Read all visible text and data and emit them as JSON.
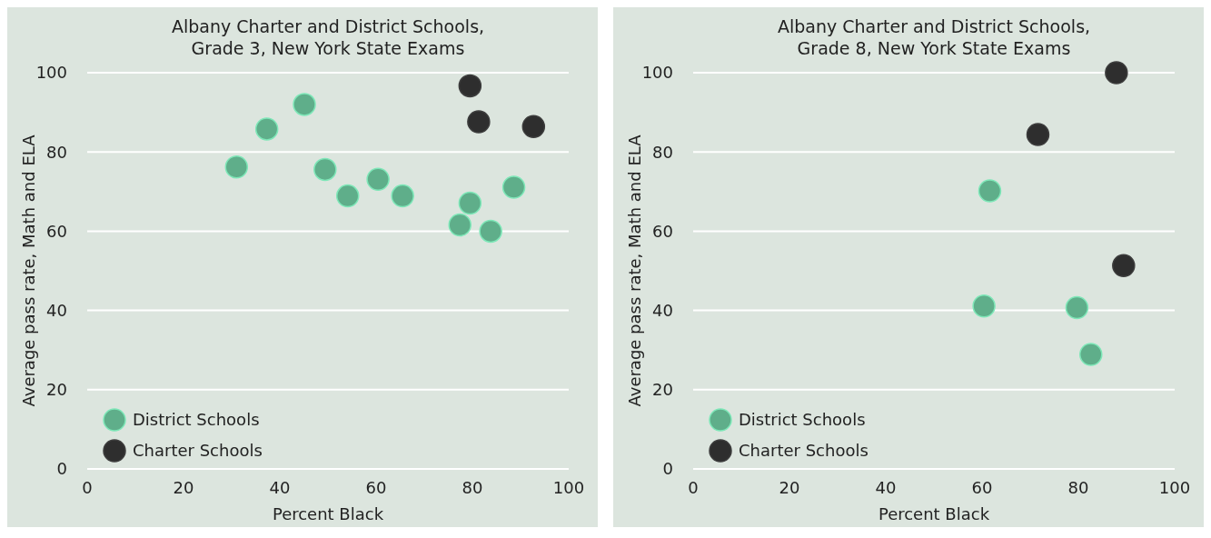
{
  "chart_data": [
    {
      "type": "scatter",
      "title": "Albany Charter and District Schools,\nGrade 3, New York State Exams",
      "xlabel": "Percent Black",
      "ylabel": "Average pass rate, Math and ELA",
      "xlim": [
        0,
        100
      ],
      "xticks": [
        0,
        20,
        40,
        60,
        80,
        100
      ],
      "ylim": [
        0,
        100
      ],
      "yticks": [
        0,
        20,
        40,
        60,
        80,
        100
      ],
      "grid": "y",
      "legend": "bottom left",
      "marker": "circle",
      "series": [
        {
          "name": "District Schools",
          "color": "#5fae8a",
          "x": [
            31,
            37.3,
            45.1,
            49.4,
            54.1,
            60.4,
            65.5,
            77.4,
            79.5,
            83.8,
            88.6
          ],
          "values": [
            76.2,
            85.8,
            92,
            75.6,
            68.9,
            73.1,
            68.9,
            61.6,
            67.1,
            60,
            71.1
          ]
        },
        {
          "name": "Charter Schools",
          "color": "#2e2e2e",
          "x": [
            79.5,
            81.3,
            92.7
          ],
          "values": [
            96.7,
            87.6,
            86.4
          ]
        }
      ]
    },
    {
      "type": "scatter",
      "title": "Albany Charter and District Schools,\nGrade 8, New York State Exams",
      "xlabel": "Percent Black",
      "ylabel": "Average pass rate, Math and ELA",
      "xlim": [
        0,
        100
      ],
      "xticks": [
        0,
        20,
        40,
        60,
        80,
        100
      ],
      "ylim": [
        0,
        100
      ],
      "yticks": [
        0,
        20,
        40,
        60,
        80,
        100
      ],
      "grid": "y",
      "legend": "bottom left",
      "marker": "circle",
      "series": [
        {
          "name": "District Schools",
          "color": "#5fae8a",
          "x": [
            61.6,
            60.4,
            79.7,
            82.6
          ],
          "values": [
            70.2,
            41.1,
            40.7,
            28.9
          ]
        },
        {
          "name": "Charter Schools",
          "color": "#2e2e2e",
          "x": [
            71.6,
            87.9,
            89.4
          ],
          "values": [
            84.4,
            100,
            51.3
          ]
        }
      ]
    }
  ]
}
